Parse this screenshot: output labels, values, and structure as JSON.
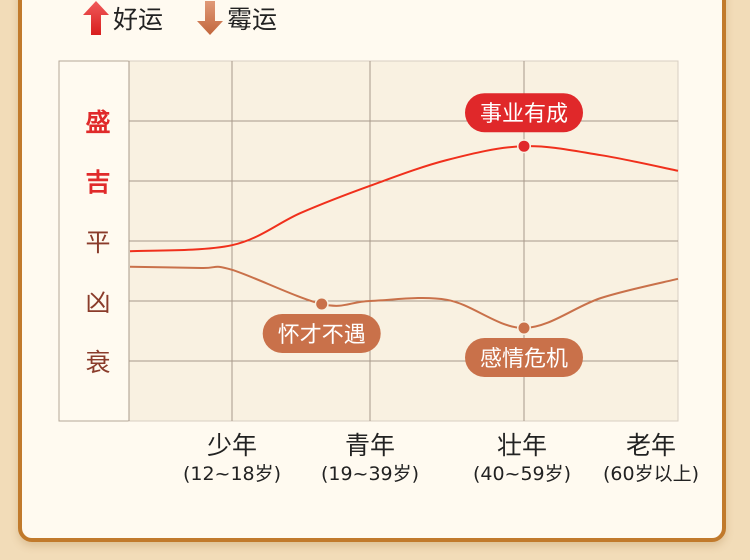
{
  "legend": [
    {
      "label": "好运",
      "icon": "arrow-up-icon",
      "color": "#e02a2a"
    },
    {
      "label": "霉运",
      "icon": "arrow-down-icon",
      "color": "#c9714a"
    }
  ],
  "chart_data": {
    "type": "line",
    "title": "",
    "y_levels": [
      "盛",
      "吉",
      "平",
      "凶",
      "衰"
    ],
    "y_level_colors": [
      "#e02a2a",
      "#e02a2a",
      "#8a3b2a",
      "#8a3b2a",
      "#8a3b2a"
    ],
    "x_stages": [
      {
        "name": "少年",
        "range": "(12~18岁)"
      },
      {
        "name": "青年",
        "range": "(19~39岁)"
      },
      {
        "name": "壮年",
        "range": "(40~59岁)"
      },
      {
        "name": "老年",
        "range": "(60岁以上)"
      }
    ],
    "grid": true,
    "series": [
      {
        "key": "good",
        "color": "#f0301c",
        "points": [
          [
            0,
            2.83
          ],
          [
            1,
            2.93
          ],
          [
            1.5,
            3.47
          ],
          [
            2,
            3.92
          ],
          [
            2.5,
            4.35
          ],
          [
            3,
            4.58
          ],
          [
            3.5,
            4.43
          ],
          [
            4,
            4.17
          ]
        ],
        "annotations": [
          {
            "x": 3,
            "y": 4.58,
            "label": "事业有成",
            "color": "#e0282a"
          }
        ]
      },
      {
        "key": "bad",
        "color": "#c9714a",
        "points": [
          [
            0,
            2.57
          ],
          [
            0.7,
            2.55
          ],
          [
            1,
            2.52
          ],
          [
            1.65,
            1.95
          ],
          [
            2,
            2.0
          ],
          [
            2.5,
            2.02
          ],
          [
            3,
            1.55
          ],
          [
            3.5,
            2.05
          ],
          [
            4,
            2.37
          ]
        ],
        "annotations": [
          {
            "x": 1.65,
            "y": 1.95,
            "label": "怀才不遇",
            "color": "#c9714a"
          },
          {
            "x": 3,
            "y": 1.55,
            "label": "感情危机",
            "color": "#c9714a"
          }
        ]
      }
    ]
  }
}
